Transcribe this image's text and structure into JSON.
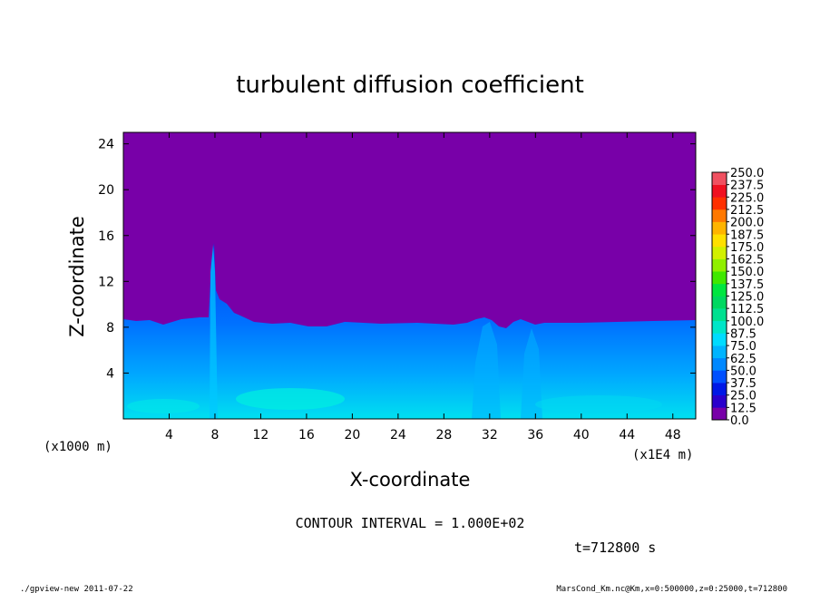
{
  "chart_data": {
    "type": "heatmap",
    "title": "turbulent diffusion coefficient",
    "xlabel": "X-coordinate",
    "ylabel": "Z-coordinate",
    "x_unit": "(x1E4 m)",
    "y_unit": "(x1000 m)",
    "xlim": [
      0,
      50
    ],
    "ylim": [
      0,
      25
    ],
    "x_ticks": [
      4,
      8,
      12,
      16,
      20,
      24,
      28,
      32,
      36,
      40,
      44,
      48
    ],
    "y_ticks": [
      4,
      8,
      12,
      16,
      20,
      24
    ],
    "x_tick_labels": [
      "4",
      "8",
      "12",
      "16",
      "20",
      "24",
      "28",
      "32",
      "36",
      "40",
      "44",
      "48"
    ],
    "y_tick_labels": [
      "4",
      "8",
      "12",
      "16",
      "20",
      "24"
    ],
    "colorbar": {
      "levels": [
        "0.0",
        "12.5",
        "25.0",
        "37.5",
        "50.0",
        "62.5",
        "75.0",
        "87.5",
        "100.0",
        "112.5",
        "125.0",
        "137.5",
        "150.0",
        "162.5",
        "175.0",
        "187.5",
        "200.0",
        "212.5",
        "225.0",
        "237.5",
        "250.0"
      ],
      "colors": [
        "#7800a8",
        "#2a00cc",
        "#0018e6",
        "#0050ff",
        "#0088ff",
        "#00b4ff",
        "#00dcff",
        "#00e6c8",
        "#00e090",
        "#00d860",
        "#00e640",
        "#40e800",
        "#90f000",
        "#d2f000",
        "#ffe000",
        "#ffb400",
        "#ff7800",
        "#ff3000",
        "#f01020",
        "#f05060"
      ]
    },
    "background_level": "0.0",
    "boundary_layer_top_approx": 8.5,
    "plume_features": [
      {
        "x": 8,
        "top_z": 15
      },
      {
        "x": 32,
        "top_z": 8.8
      },
      {
        "x": 35,
        "top_z": 8.5
      }
    ]
  },
  "contour_interval_text": "CONTOUR INTERVAL = 1.000E+02",
  "time_text": "t=712800 s",
  "footer_left": "./gpview-new   2011-07-22",
  "footer_right": "MarsCond_Km.nc@Km,x=0:500000,z=0:25000,t=712800"
}
